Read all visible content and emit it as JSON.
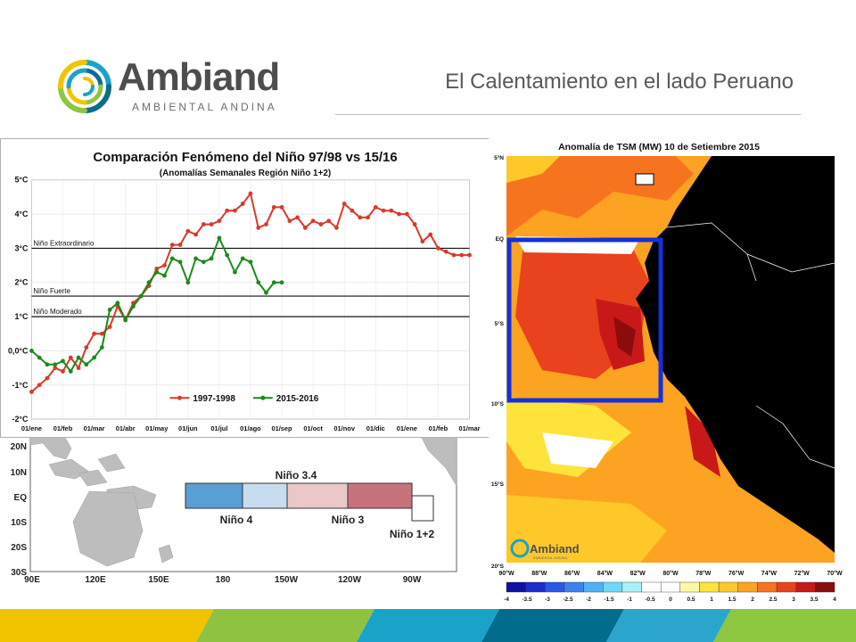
{
  "header": {
    "logo_name": "Ambiand",
    "logo_subtitle": "AMBIENTAL ANDINA",
    "slide_title": "El Calentamiento en el lado Peruano"
  },
  "colors": {
    "accent_red": "#d83a28",
    "accent_green": "#1a8a1a",
    "blue_box": "#1530d8",
    "footer": [
      "#f2c400",
      "#8fc23f",
      "#1aa3c9",
      "#006d8f",
      "#2aa6cc",
      "#8dc63f"
    ]
  },
  "enso_chart": {
    "title": "Comparación Fenómeno del Niño 97/98 vs 15/16",
    "subtitle": "(Anomalías Semanales Región Niño 1+2)",
    "y_ticks": [
      "5°C",
      "4°C",
      "3°C",
      "2°C",
      "1°C",
      "0,0°C",
      "-1°C",
      "-2°C"
    ],
    "x_ticks": [
      "01/ene",
      "01/feb",
      "01/mar",
      "01/abr",
      "01/may",
      "01/jun",
      "01/jul",
      "01/ago",
      "01/sep",
      "01/oct",
      "01/nov",
      "01/dic",
      "01/ene",
      "01/feb",
      "01/mar"
    ],
    "thresholds": [
      {
        "label": "Niño Extraordinario",
        "value": 3.0
      },
      {
        "label": "Niño Fuerte",
        "value": 1.6
      },
      {
        "label": "Niño Moderado",
        "value": 1.0
      }
    ],
    "legend": [
      "1997-1998",
      "2015-2016"
    ]
  },
  "chart_data": {
    "type": "line",
    "ylim": [
      -2,
      5
    ],
    "x_range": [
      0,
      14
    ],
    "series": [
      {
        "name": "1997-1998",
        "color": "#d83a28",
        "x": [
          0,
          0.25,
          0.5,
          0.75,
          1,
          1.25,
          1.5,
          1.75,
          2,
          2.25,
          2.5,
          2.75,
          3,
          3.25,
          3.5,
          3.75,
          4,
          4.25,
          4.5,
          4.75,
          5,
          5.25,
          5.5,
          5.75,
          6,
          6.25,
          6.5,
          6.75,
          7,
          7.25,
          7.5,
          7.75,
          8,
          8.25,
          8.5,
          8.75,
          9,
          9.25,
          9.5,
          9.75,
          10,
          10.25,
          10.5,
          10.75,
          11,
          11.25,
          11.5,
          11.75,
          12,
          12.25,
          12.5,
          12.75,
          13,
          13.25,
          13.5,
          13.75,
          14
        ],
        "y": [
          -1.2,
          -1.0,
          -0.8,
          -0.5,
          -0.6,
          -0.2,
          -0.5,
          0.1,
          0.5,
          0.5,
          0.7,
          1.3,
          0.9,
          1.4,
          1.6,
          1.9,
          2.4,
          2.5,
          3.1,
          3.1,
          3.5,
          3.4,
          3.7,
          3.7,
          3.8,
          4.1,
          4.1,
          4.3,
          4.6,
          3.6,
          3.7,
          4.2,
          4.2,
          3.8,
          3.9,
          3.6,
          3.8,
          3.7,
          3.8,
          3.6,
          4.3,
          4.1,
          3.9,
          3.9,
          4.2,
          4.1,
          4.1,
          4.0,
          4.0,
          3.7,
          3.2,
          3.4,
          3.0,
          2.9,
          2.8,
          2.8,
          2.8
        ]
      },
      {
        "name": "2015-2016",
        "color": "#1a8a1a",
        "x": [
          0,
          0.25,
          0.5,
          0.75,
          1,
          1.25,
          1.5,
          1.75,
          2,
          2.25,
          2.5,
          2.75,
          3,
          3.25,
          3.5,
          3.75,
          4,
          4.25,
          4.5,
          4.75,
          5,
          5.25,
          5.5,
          5.75,
          6,
          6.25,
          6.5,
          6.75,
          7,
          7.25,
          7.5,
          7.75,
          8
        ],
        "y": [
          0.0,
          -0.2,
          -0.4,
          -0.4,
          -0.3,
          -0.6,
          -0.2,
          -0.4,
          -0.2,
          0.1,
          1.2,
          1.4,
          0.9,
          1.3,
          1.6,
          2.0,
          2.3,
          2.2,
          2.7,
          2.6,
          2.0,
          2.7,
          2.6,
          2.7,
          3.3,
          2.8,
          2.3,
          2.7,
          2.6,
          2.0,
          1.7,
          2.0,
          2.0
        ]
      }
    ]
  },
  "enso_map": {
    "lat_labels": [
      "20N",
      "10N",
      "EQ",
      "10S",
      "20S",
      "30S"
    ],
    "lon_labels": [
      "90E",
      "120E",
      "150E",
      "180",
      "150W",
      "120W",
      "90W"
    ],
    "regions": {
      "nino34": "Niño 3.4",
      "nino4": "Niño 4",
      "nino3": "Niño 3",
      "nino12": "Niño 1+2"
    }
  },
  "sst_map": {
    "title": "Anomalía de TSM (MW) 10 de Setiembre 2015",
    "lat_labels": [
      "5°N",
      "EQ",
      "5°S",
      "10°S",
      "15°S",
      "20°S"
    ],
    "lon_labels": [
      "90°W",
      "88°W",
      "86°W",
      "84°W",
      "82°W",
      "80°W",
      "78°W",
      "76°W",
      "74°W",
      "72°W",
      "70°W"
    ],
    "colorbar_labels": [
      "-4",
      "-3.5",
      "-3",
      "-2.5",
      "-2",
      "-1.5",
      "-1",
      "-0.5",
      "0",
      "0.5",
      "1",
      "1.5",
      "2",
      "2.5",
      "3",
      "3.5",
      "4"
    ],
    "colorbar_colors": [
      "#1010a0",
      "#1c2ccd",
      "#2b57e8",
      "#3b82f0",
      "#4cb2f7",
      "#6fd9fb",
      "#a8f1fb",
      "#ffffff",
      "#ffffff",
      "#fff7a3",
      "#fee43a",
      "#fec828",
      "#fca322",
      "#f7741e",
      "#e8431c",
      "#c81818",
      "#8c0c0c"
    ],
    "watermark_name": "Ambiand",
    "watermark_sub": "AMBIENTAL ANDINA"
  }
}
